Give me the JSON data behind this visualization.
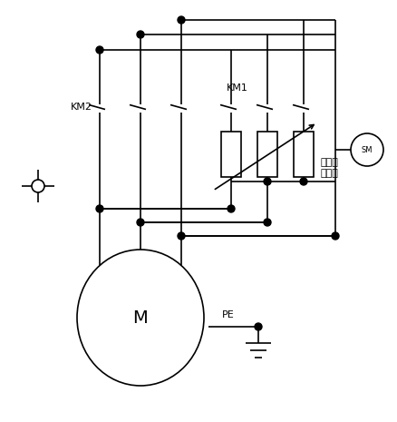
{
  "bg_color": "#ffffff",
  "line_color": "#000000",
  "lw": 1.2,
  "fig_width": 4.38,
  "fig_height": 4.65,
  "dpi": 100,
  "km2_label": "KM2",
  "km1_label": "KM1",
  "motor_label": "M",
  "pe_label": "PE",
  "res_label": "可调液\n体电阔",
  "sm_label": "SM"
}
